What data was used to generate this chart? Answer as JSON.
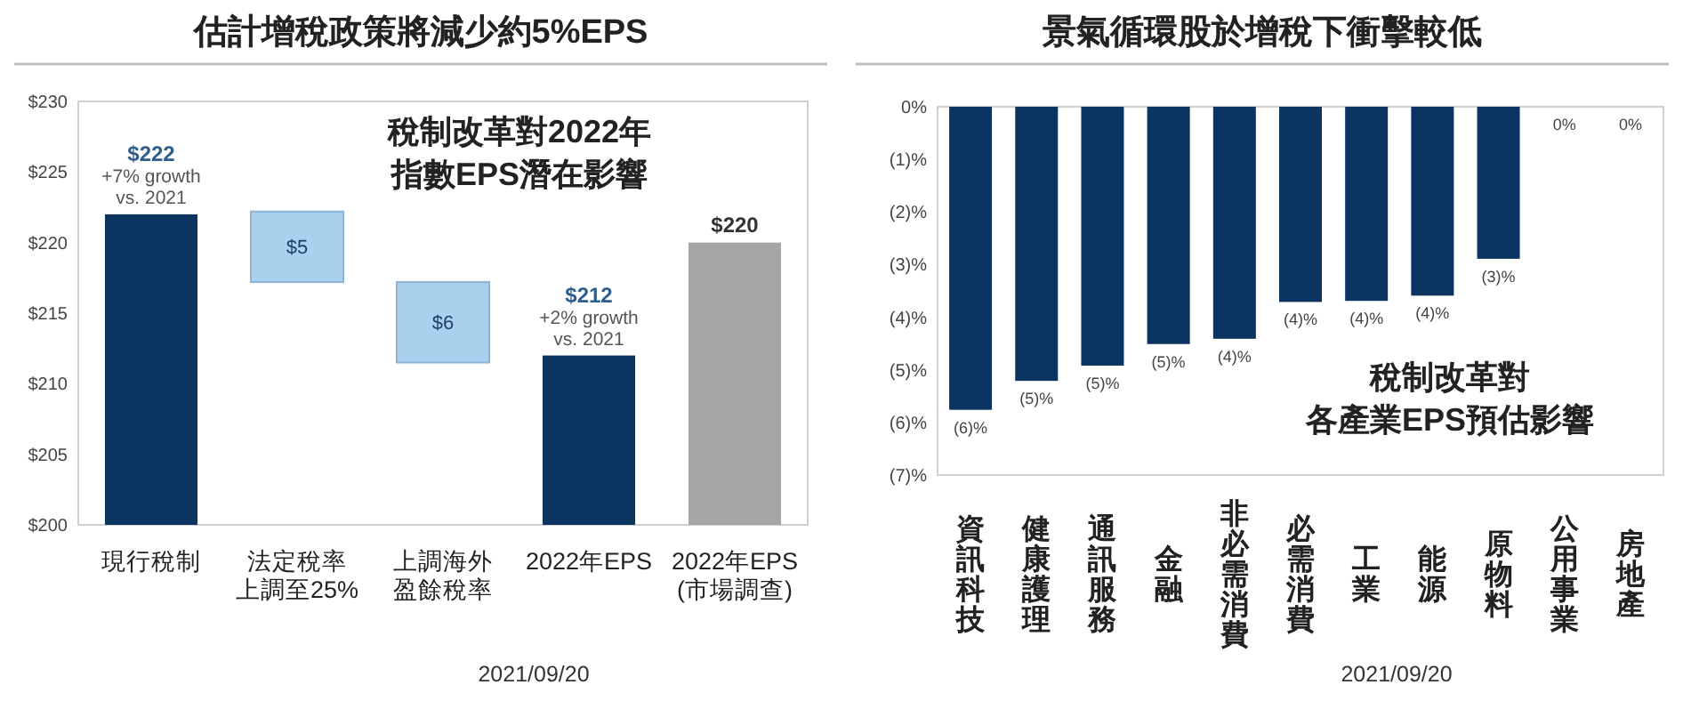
{
  "chart_data": [
    {
      "type": "bar",
      "title": "估計增稅政策將減少約5%EPS",
      "categories": [
        "現行稅制",
        "法定稅率上調至25%",
        "上調海外盈餘稅率",
        "2022年EPS",
        "2022年EPS\n(市場調查)"
      ],
      "base": [
        null,
        217.2,
        211.5,
        null,
        null
      ],
      "values": [
        222,
        5,
        5.7,
        212,
        220
      ],
      "colors": [
        "#0b3461",
        "#a9d1ee",
        "#a9d1ee",
        "#0b3461",
        "#a6a6a6"
      ],
      "value_labels": [
        "$222\n+7% growth\nvs. 2021",
        "$5",
        "$6",
        "$212\n+2% growth\nvs. 2021",
        "$220"
      ],
      "ylim": [
        200,
        230
      ],
      "yticks": [
        {
          "value": 200,
          "label": "$200"
        },
        {
          "value": 205,
          "label": "$205"
        },
        {
          "value": 210,
          "label": "$210"
        },
        {
          "value": 215,
          "label": "$215"
        },
        {
          "value": 220,
          "label": "$220"
        },
        {
          "value": 225,
          "label": "$225"
        },
        {
          "value": 230,
          "label": "$230"
        }
      ],
      "annotations": [
        "稅制改革對2022年",
        "指數EPS潛在影響",
        "2021/09/20"
      ]
    },
    {
      "type": "bar",
      "title": "景氣循環股於增稅下衝擊較低",
      "categories": [
        "資訊科技",
        "健康護理",
        "通訊服務",
        "金融",
        "非必需消費",
        "必需消費",
        "工業",
        "能源",
        "原物料",
        "公用事業",
        "房地產"
      ],
      "values": [
        -5.76,
        -5.21,
        -4.92,
        -4.51,
        -4.41,
        -3.71,
        -3.69,
        -3.59,
        -2.89,
        0,
        0
      ],
      "color": "#0b3461",
      "value_labels": [
        "(6)%",
        "(5)%",
        "(5)%",
        "(5)%",
        "(4)%",
        "(4)%",
        "(4)%",
        "(4)%",
        "(3)%",
        "0%",
        "0%"
      ],
      "ylim": [
        -7,
        0
      ],
      "yticks": [
        {
          "value": 0,
          "label": "0%"
        },
        {
          "value": -1,
          "label": "(1)%"
        },
        {
          "value": -2,
          "label": "(2)%"
        },
        {
          "value": -3,
          "label": "(3)%"
        },
        {
          "value": -4,
          "label": "(4)%"
        },
        {
          "value": -5,
          "label": "(5)%"
        },
        {
          "value": -6,
          "label": "(6)%"
        },
        {
          "value": -7,
          "label": "(7)%"
        }
      ],
      "annotations": [
        "稅制改革對",
        "各產業EPS預估影響",
        "2021/09/20"
      ]
    }
  ]
}
